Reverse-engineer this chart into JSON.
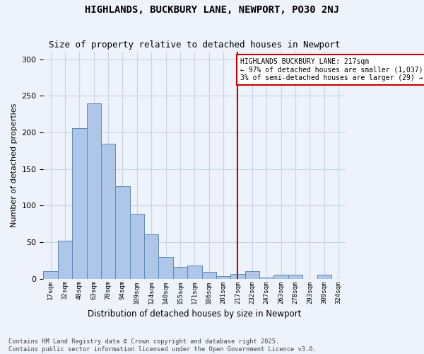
{
  "title": "HIGHLANDS, BUCKBURY LANE, NEWPORT, PO30 2NJ",
  "subtitle": "Size of property relative to detached houses in Newport",
  "xlabel": "Distribution of detached houses by size in Newport",
  "ylabel": "Number of detached properties",
  "footnote": "Contains HM Land Registry data © Crown copyright and database right 2025.\nContains public sector information licensed under the Open Government Licence v3.0.",
  "bins": [
    "17sqm",
    "32sqm",
    "48sqm",
    "63sqm",
    "78sqm",
    "94sqm",
    "109sqm",
    "124sqm",
    "140sqm",
    "155sqm",
    "171sqm",
    "186sqm",
    "201sqm",
    "217sqm",
    "232sqm",
    "247sqm",
    "263sqm",
    "278sqm",
    "293sqm",
    "309sqm",
    "324sqm"
  ],
  "values": [
    10,
    52,
    206,
    240,
    185,
    126,
    89,
    61,
    30,
    16,
    18,
    9,
    4,
    6,
    10,
    2,
    5,
    5,
    0,
    5,
    0
  ],
  "bar_color": "#aec6e8",
  "bar_edge_color": "#5b8db8",
  "grid_color": "#c8d4e8",
  "background_color": "#eef2fa",
  "vline_index": 13,
  "vline_color": "#cc0000",
  "annotation_title": "HIGHLANDS BUCKBURY LANE: 217sqm",
  "annotation_line1": "← 97% of detached houses are smaller (1,037)",
  "annotation_line2": "3% of semi-detached houses are larger (29) →",
  "annotation_box_edgecolor": "#cc0000",
  "ylim": [
    0,
    310
  ]
}
